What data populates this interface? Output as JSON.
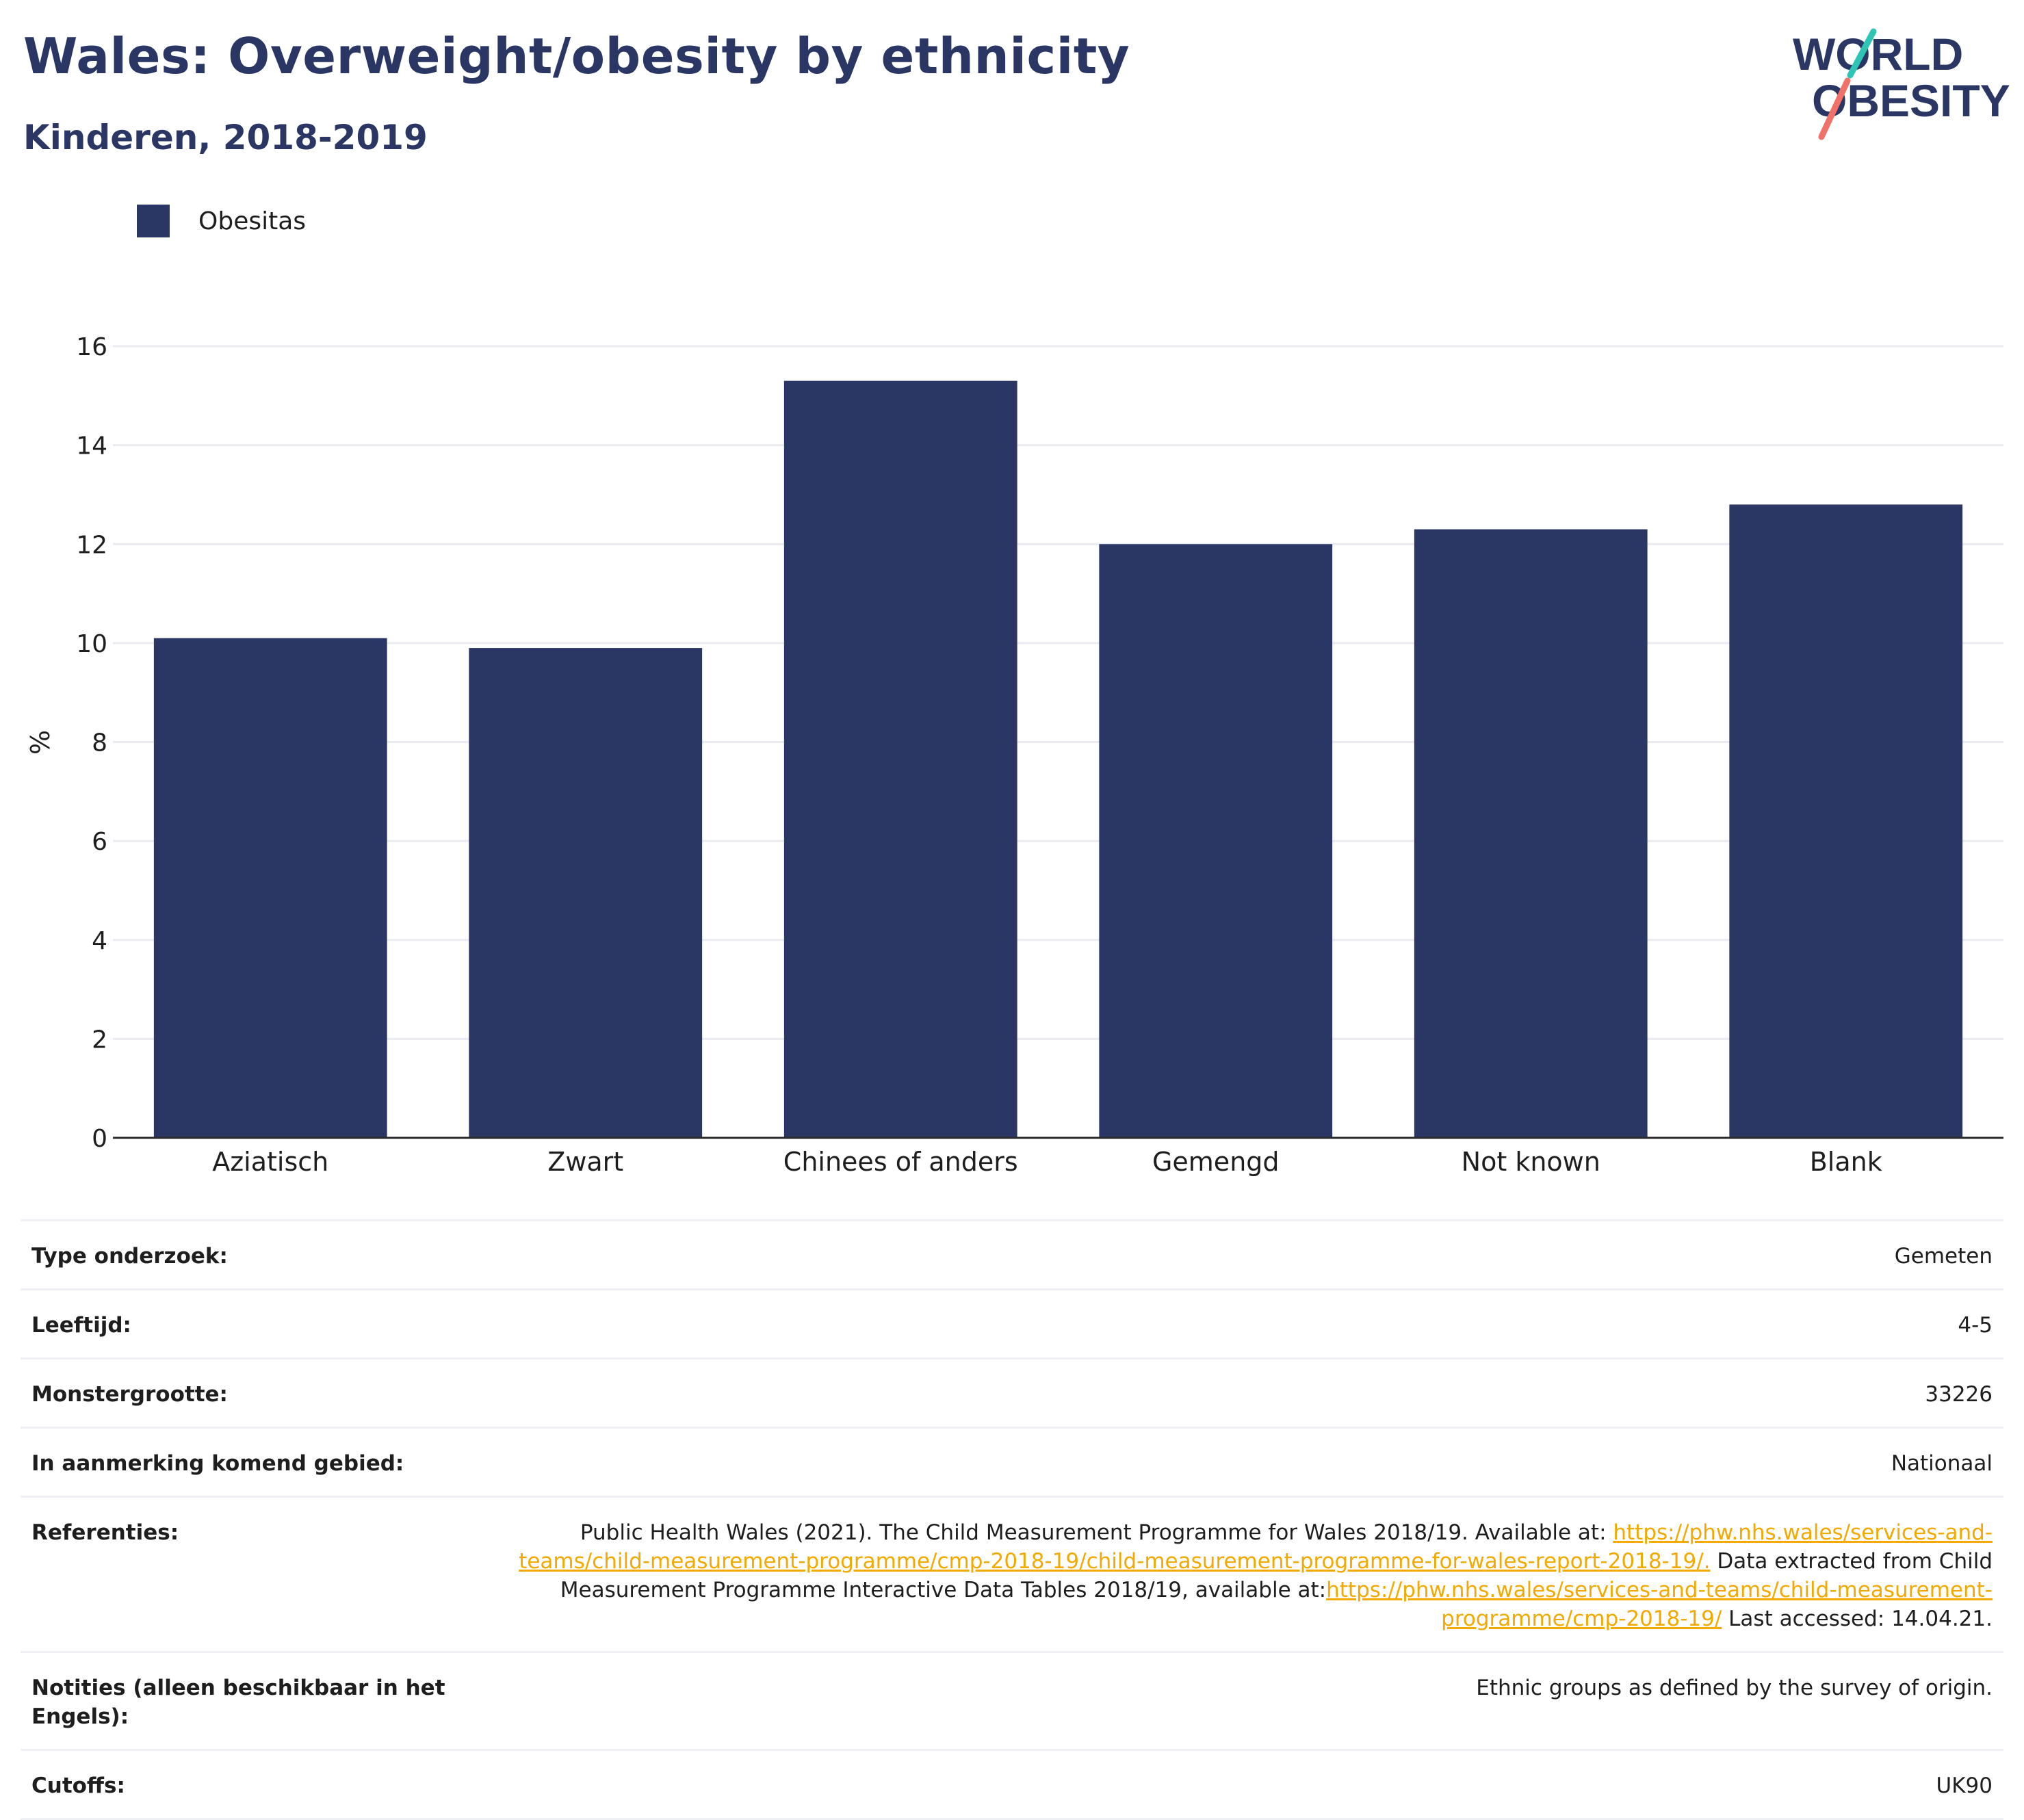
{
  "header": {
    "title": "Wales: Overweight/obesity by ethnicity",
    "subtitle": "Kinderen, 2018-2019"
  },
  "logo": {
    "line1": "WORLD",
    "line2": "OBESITY"
  },
  "colors": {
    "bar": "#2a3663",
    "title": "#2a3663",
    "link": "#f2a900",
    "grid": "#e9ebf1",
    "logo_teal": "#2ec4b6",
    "logo_coral": "#f07167"
  },
  "chart_data": {
    "type": "bar",
    "categories": [
      "Aziatisch",
      "Zwart",
      "Chinees of anders",
      "Gemengd",
      "Not known",
      "Blank"
    ],
    "series": [
      {
        "name": "Obesitas",
        "values": [
          10.1,
          9.9,
          15.3,
          12.0,
          12.3,
          12.8
        ]
      }
    ],
    "ylabel": "%",
    "ylim": [
      0,
      16
    ],
    "yticks": [
      0,
      2,
      4,
      6,
      8,
      10,
      12,
      14,
      16
    ],
    "grid": true,
    "legend": "top-left"
  },
  "info": {
    "rows": [
      {
        "key": "Type onderzoek:",
        "value": "Gemeten"
      },
      {
        "key": "Leeftijd:",
        "value": "4-5"
      },
      {
        "key": "Monstergrootte:",
        "value": "33226"
      }
    ],
    "area_key": "In aanmerking komend gebied:",
    "area_value": "Nationaal",
    "references_key": "Referenties:",
    "references_text1": "Public Health Wales (2021). The Child Measurement Programme for Wales 2018/19. Available at: ",
    "references_link1": "https://phw.nhs.wales/services-and-teams/child-measurement-programme/cmp-2018-19/child-measurement-programme-for-wales-report-2018-19/.",
    "references_text2": " Data extracted from Child Measurement Programme Interactive Data Tables 2018/19, available at:",
    "references_link2": "https://phw.nhs.wales/services-and-teams/child-measurement-programme/cmp-2018-19/",
    "references_text3": " Last accessed: 14.04.21.",
    "notes_key": "Notities (alleen beschikbaar in het Engels):",
    "notes_value": "Ethnic groups as defined by the survey of origin.",
    "cutoffs_key": "Cutoffs:",
    "cutoffs_value": "UK90"
  }
}
